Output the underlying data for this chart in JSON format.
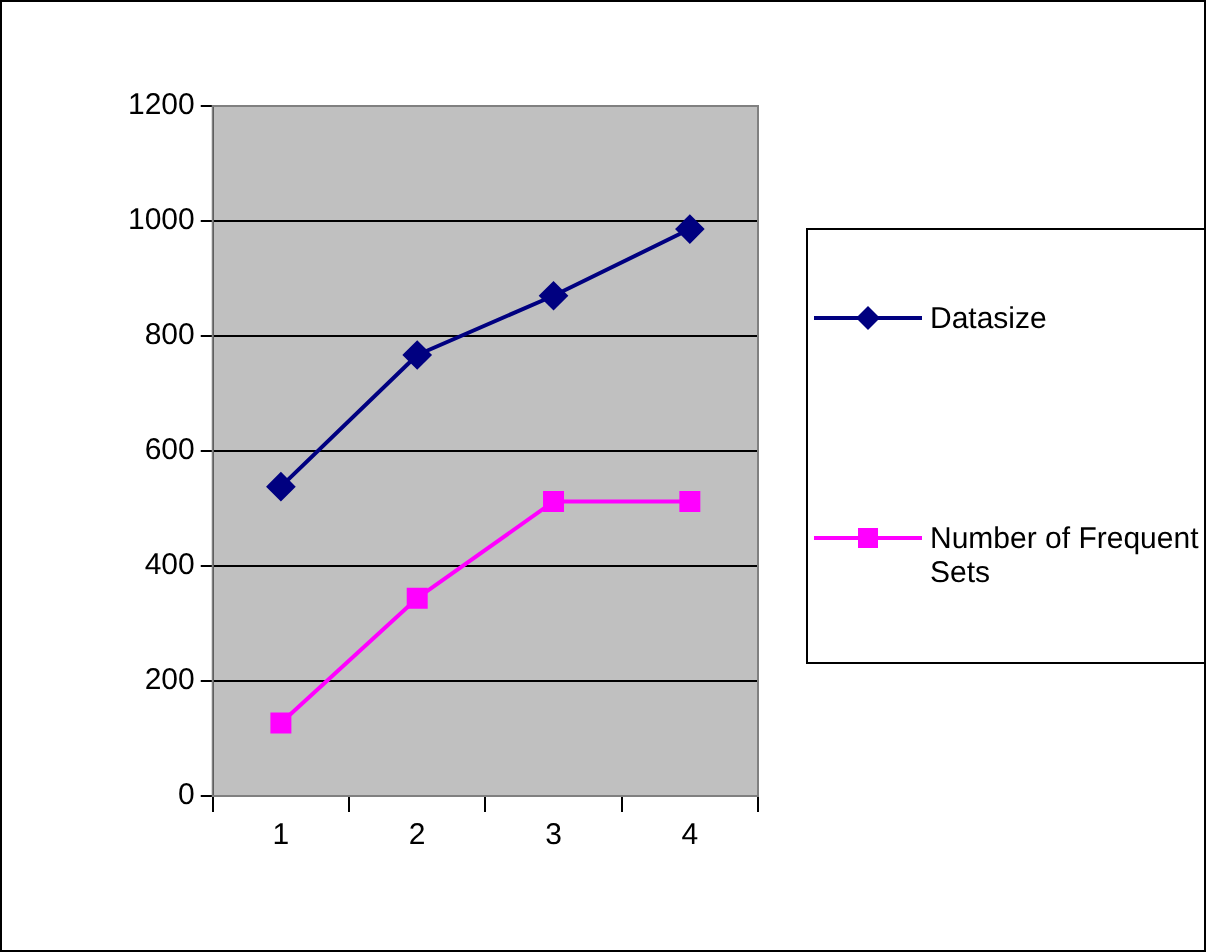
{
  "chart_data": {
    "type": "line",
    "categories": [
      "1",
      "2",
      "3",
      "4"
    ],
    "series": [
      {
        "name": "Datasize",
        "color": "#000080",
        "marker": "diamond",
        "values": [
          538,
          767,
          870,
          986
        ]
      },
      {
        "name": "Number of Frequent Sets",
        "color": "#ff00ff",
        "marker": "square",
        "values": [
          127,
          344,
          512,
          512
        ]
      }
    ],
    "ylim": [
      0,
      1200
    ],
    "yticks": [
      0,
      200,
      400,
      600,
      800,
      1000,
      1200
    ],
    "grid": "y",
    "legend": "right"
  }
}
